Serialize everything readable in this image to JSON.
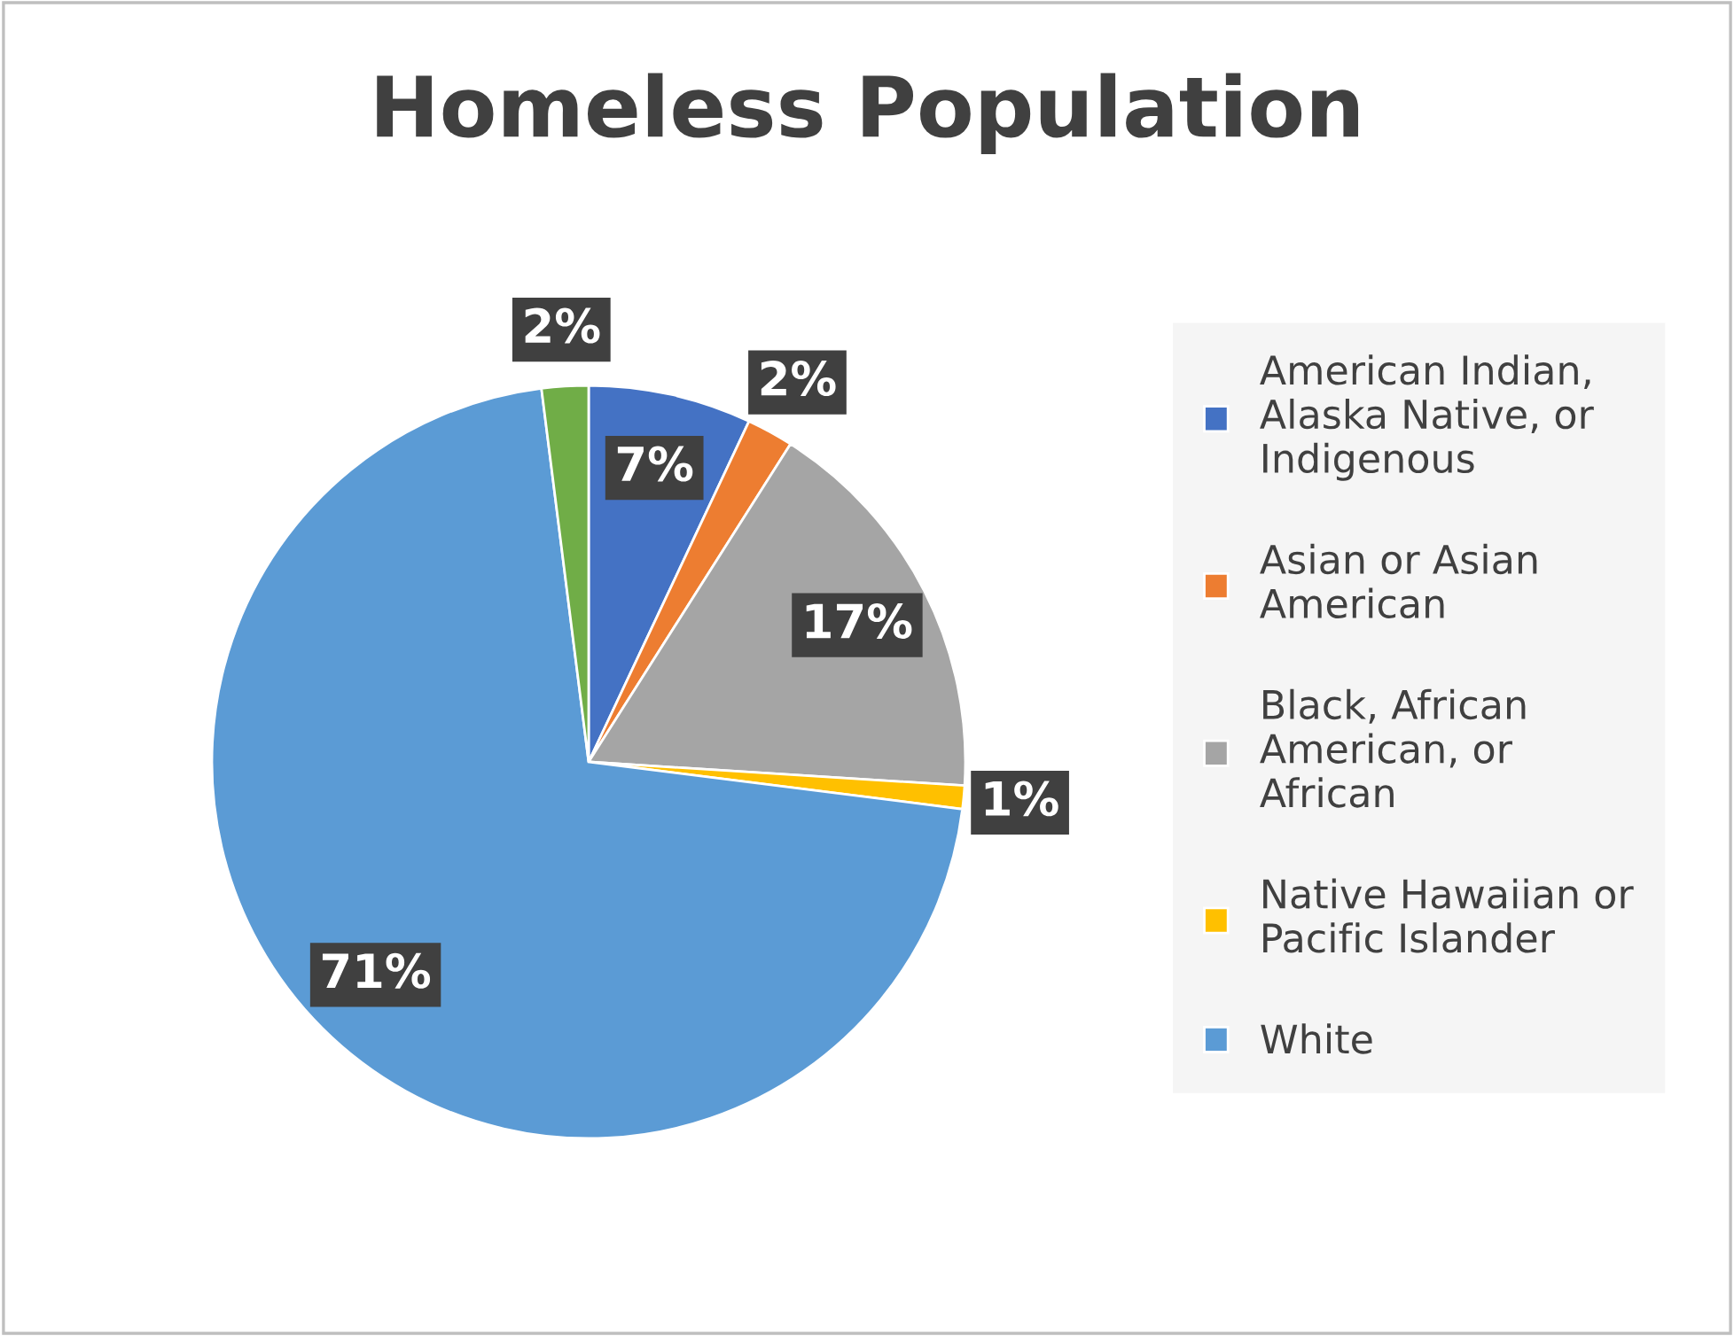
{
  "chart_data": {
    "type": "pie",
    "title": "Homeless Population",
    "categories": [
      "American Indian, Alaska Native, or Indigenous",
      "Asian or Asian American",
      "Black, African American, or African",
      "Native Hawaiian or Pacific Islander",
      "White",
      null
    ],
    "values": [
      7,
      2,
      17,
      1,
      71,
      2
    ],
    "colors": [
      "#4472c4",
      "#ed7d31",
      "#a5a5a5",
      "#ffc000",
      "#5b9bd5",
      "#70ad47"
    ],
    "value_labels": [
      "7%",
      "2%",
      "17%",
      "1%",
      "71%",
      "2%"
    ],
    "legend": "right"
  }
}
